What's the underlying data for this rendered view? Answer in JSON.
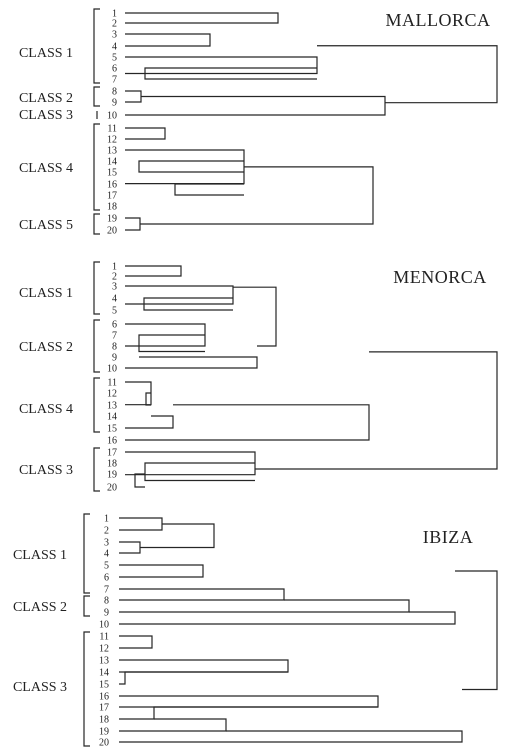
{
  "panels": [
    {
      "name": "MALLORCA",
      "classes": [
        {
          "label": "CLASS 1",
          "from": 1,
          "to": 7
        },
        {
          "label": "CLASS 2",
          "from": 8,
          "to": 9
        },
        {
          "label": "CLASS 3",
          "from": 10,
          "to": 10
        },
        {
          "label": "CLASS 4",
          "from": 11,
          "to": 18
        },
        {
          "label": "CLASS 5",
          "from": 19,
          "to": 20
        }
      ]
    },
    {
      "name": "MENORCA",
      "classes": [
        {
          "label": "CLASS 1",
          "from": 1,
          "to": 5
        },
        {
          "label": "CLASS 2",
          "from": 6,
          "to": 10
        },
        {
          "label": "CLASS 4",
          "from": 11,
          "to": 15
        },
        {
          "label": "CLASS 3",
          "from": 17,
          "to": 20
        }
      ]
    },
    {
      "name": "IBIZA",
      "classes": [
        {
          "label": "CLASS 1",
          "from": 1,
          "to": 7
        },
        {
          "label": "CLASS 2",
          "from": 8,
          "to": 9
        },
        {
          "label": "CLASS 3",
          "from": 11,
          "to": 20
        }
      ]
    }
  ]
}
